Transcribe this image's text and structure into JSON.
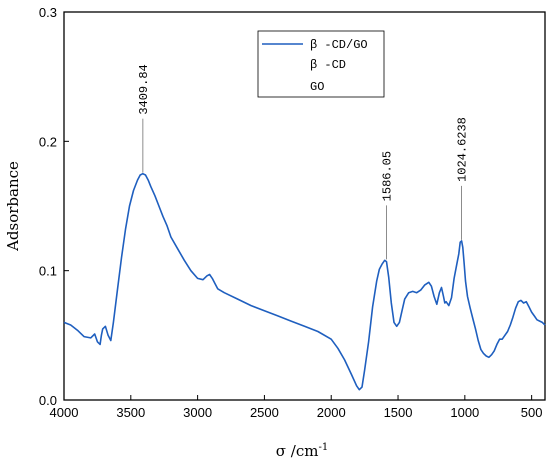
{
  "chart_data": {
    "type": "line",
    "xlabel": "σ /cm",
    "xlabel_sup": "-1",
    "ylabel": "Adsorbance",
    "xlim": [
      4000,
      400
    ],
    "ylim": [
      0,
      0.3
    ],
    "x_ticks": [
      4000,
      3500,
      3000,
      2500,
      2000,
      1500,
      1000,
      500
    ],
    "x_tick_labels": [
      "4000",
      "3500",
      "3000",
      "2500",
      "2000",
      "1500",
      "1000",
      "500"
    ],
    "y_ticks": [
      0,
      0.1,
      0.2,
      0.3
    ],
    "y_tick_labels": [
      "0.0",
      "0.1",
      "0.2",
      "0.3"
    ],
    "grid": false,
    "legend_position": "top-center",
    "legend_entries": [
      "β -CD/GO",
      "β -CD",
      "GO"
    ],
    "series": [
      {
        "name": "β -CD/GO",
        "color": "#1f5fbf",
        "x": [
          4000,
          3950,
          3900,
          3850,
          3800,
          3770,
          3750,
          3730,
          3720,
          3710,
          3690,
          3670,
          3650,
          3630,
          3600,
          3570,
          3540,
          3510,
          3480,
          3450,
          3430,
          3410,
          3390,
          3370,
          3350,
          3320,
          3290,
          3260,
          3230,
          3200,
          3150,
          3100,
          3050,
          3000,
          2960,
          2930,
          2910,
          2890,
          2870,
          2850,
          2800,
          2700,
          2600,
          2500,
          2400,
          2300,
          2200,
          2100,
          2000,
          1950,
          1900,
          1850,
          1810,
          1790,
          1770,
          1750,
          1720,
          1690,
          1660,
          1640,
          1620,
          1600,
          1586,
          1570,
          1550,
          1530,
          1510,
          1490,
          1470,
          1450,
          1420,
          1390,
          1360,
          1330,
          1300,
          1270,
          1250,
          1230,
          1210,
          1190,
          1175,
          1160,
          1150,
          1140,
          1120,
          1100,
          1080,
          1060,
          1045,
          1035,
          1024,
          1015,
          1005,
          995,
          980,
          960,
          940,
          920,
          900,
          880,
          860,
          840,
          820,
          800,
          780,
          760,
          740,
          720,
          700,
          680,
          660,
          640,
          620,
          600,
          580,
          560,
          540,
          520,
          500,
          480,
          460,
          440,
          420,
          400
        ],
        "y": [
          0.06,
          0.058,
          0.054,
          0.049,
          0.048,
          0.051,
          0.045,
          0.043,
          0.05,
          0.055,
          0.057,
          0.05,
          0.046,
          0.06,
          0.085,
          0.11,
          0.132,
          0.15,
          0.162,
          0.17,
          0.174,
          0.175,
          0.174,
          0.17,
          0.165,
          0.158,
          0.15,
          0.142,
          0.135,
          0.126,
          0.117,
          0.108,
          0.1,
          0.094,
          0.093,
          0.096,
          0.097,
          0.094,
          0.09,
          0.086,
          0.083,
          0.078,
          0.073,
          0.069,
          0.065,
          0.061,
          0.057,
          0.053,
          0.047,
          0.04,
          0.031,
          0.02,
          0.011,
          0.008,
          0.01,
          0.023,
          0.045,
          0.072,
          0.092,
          0.101,
          0.105,
          0.108,
          0.107,
          0.095,
          0.075,
          0.06,
          0.057,
          0.06,
          0.069,
          0.078,
          0.083,
          0.084,
          0.083,
          0.085,
          0.089,
          0.091,
          0.088,
          0.08,
          0.074,
          0.083,
          0.087,
          0.08,
          0.075,
          0.076,
          0.073,
          0.079,
          0.094,
          0.105,
          0.113,
          0.122,
          0.123,
          0.118,
          0.105,
          0.092,
          0.08,
          0.071,
          0.063,
          0.055,
          0.046,
          0.039,
          0.036,
          0.034,
          0.033,
          0.035,
          0.038,
          0.043,
          0.047,
          0.047,
          0.05,
          0.053,
          0.058,
          0.064,
          0.071,
          0.076,
          0.077,
          0.075,
          0.076,
          0.072,
          0.068,
          0.065,
          0.062,
          0.061,
          0.06,
          0.058
        ]
      }
    ],
    "annotations": [
      {
        "text": "3409.84",
        "x": 3409.84,
        "y": 0.175
      },
      {
        "text": "1586.05",
        "x": 1586.05,
        "y": 0.108
      },
      {
        "text": "1024.6238",
        "x": 1024.6238,
        "y": 0.123
      }
    ]
  }
}
